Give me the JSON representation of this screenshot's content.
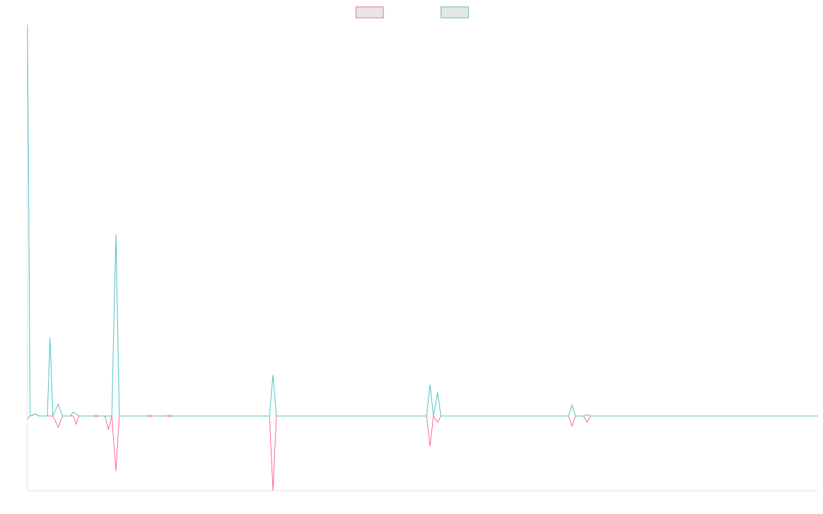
{
  "chart_data": {
    "type": "line",
    "x": [
      0,
      4,
      12,
      17,
      29,
      33,
      37,
      45,
      51,
      62,
      67,
      71,
      75,
      96,
      100,
      104,
      113,
      118,
      123,
      129,
      134,
      174,
      178,
      182,
      203,
      207,
      211,
      353,
      358,
      363,
      582,
      587,
      592,
      598,
      603,
      789,
      794,
      799,
      811,
      816,
      821,
      1153
    ],
    "series": [
      {
        "color": "#ff6384",
        "values": [
          -0.7,
          0,
          0.5,
          0,
          0,
          0,
          0,
          -2.9,
          0,
          0,
          0,
          -2.1,
          0,
          0,
          -0.2,
          0,
          0,
          -3.5,
          0,
          -14,
          0,
          0,
          -0.2,
          0,
          0,
          -0.2,
          0,
          0,
          -19,
          0,
          0,
          -7.7,
          0,
          -1.6,
          0,
          0,
          -2.6,
          0,
          0,
          -1.6,
          0,
          0
        ]
      },
      {
        "color": "#4bc0c0",
        "values": [
          100,
          0,
          0.5,
          0,
          0,
          20,
          0,
          3,
          0,
          0,
          1,
          0.5,
          0,
          0,
          0.2,
          0,
          0,
          0,
          0,
          46.4,
          0,
          0,
          0.2,
          0,
          0,
          0.2,
          0,
          0,
          10.5,
          0,
          0,
          8,
          0,
          6,
          0,
          0,
          2.8,
          0,
          0,
          0.35,
          0,
          0
        ]
      }
    ],
    "xlim": [
      0,
      1153
    ],
    "ylim": [
      -19.1,
      100
    ],
    "legend": "top"
  }
}
